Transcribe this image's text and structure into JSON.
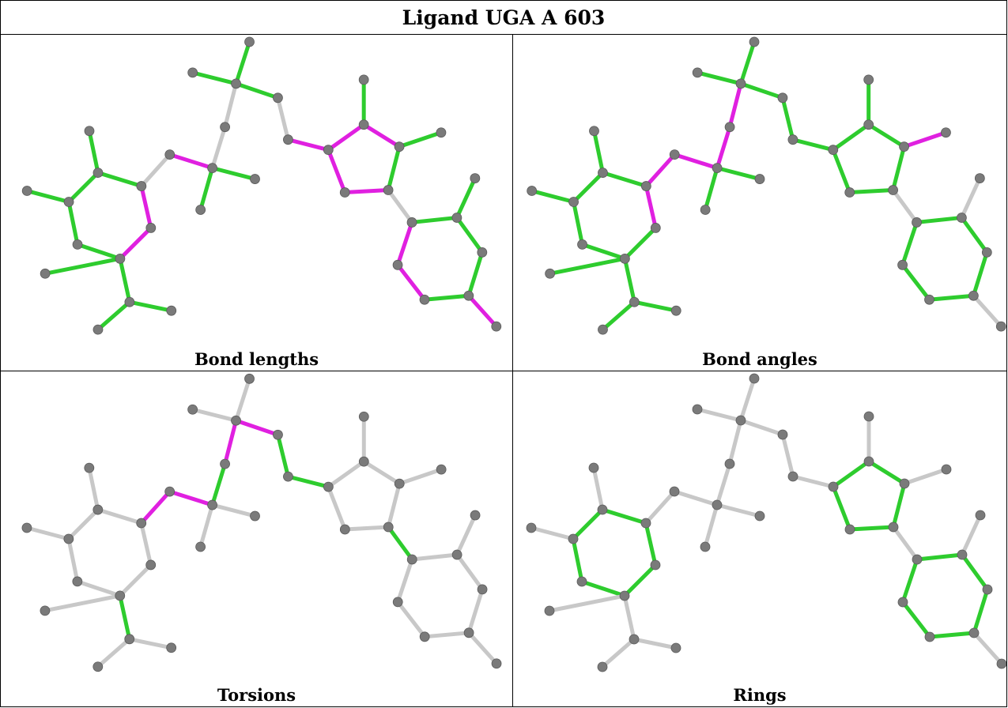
{
  "title": "Ligand UGA A 603",
  "panels": [
    {
      "caption": "Bond lengths"
    },
    {
      "caption": "Bond angles"
    },
    {
      "caption": "Torsions"
    },
    {
      "caption": "Rings"
    }
  ],
  "colors": {
    "green": "#2ecc2e",
    "magenta": "#e020e0",
    "grey": "#c8c8c8",
    "atom": "#7a7a7a"
  },
  "atoms": [
    "c1",
    "c2",
    "c3",
    "c4",
    "c5",
    "c6",
    "h1",
    "h2",
    "h3",
    "m1",
    "m2",
    "m3",
    "l1",
    "n1",
    "k1",
    "k2",
    "k3",
    "k4",
    "k5",
    "k6",
    "r1",
    "r2",
    "r3",
    "r4",
    "r5",
    "e1",
    "e2",
    "b1",
    "b2",
    "b3",
    "b4",
    "b5",
    "b6",
    "h7"
  ],
  "bonds": [
    [
      "c1",
      "c2"
    ],
    [
      "c2",
      "c3"
    ],
    [
      "c3",
      "c4"
    ],
    [
      "c4",
      "c5"
    ],
    [
      "c5",
      "c6"
    ],
    [
      "c6",
      "c1"
    ],
    [
      "c2",
      "h1"
    ],
    [
      "c4",
      "h2"
    ],
    [
      "c5",
      "h3"
    ],
    [
      "c3",
      "m1"
    ],
    [
      "m1",
      "m2"
    ],
    [
      "m1",
      "m3"
    ],
    [
      "c1",
      "l1"
    ],
    [
      "l1",
      "n1"
    ],
    [
      "n1",
      "k1"
    ],
    [
      "k1",
      "k3"
    ],
    [
      "k1",
      "k4"
    ],
    [
      "k1",
      "k2"
    ],
    [
      "k2",
      "k5"
    ],
    [
      "k5",
      "k6"
    ],
    [
      "k6",
      "k7"
    ],
    [
      "k6",
      "k8"
    ],
    [
      "k5",
      "k9"
    ],
    [
      "k9",
      "k10"
    ],
    [
      "k10",
      "r1"
    ],
    [
      "r1",
      "r2"
    ],
    [
      "r2",
      "r3"
    ],
    [
      "r3",
      "r4"
    ],
    [
      "r4",
      "r5"
    ],
    [
      "r5",
      "r1"
    ],
    [
      "r2",
      "e1"
    ],
    [
      "r3",
      "e2"
    ],
    [
      "r4",
      "b1"
    ],
    [
      "b1",
      "b2"
    ],
    [
      "b2",
      "b3"
    ],
    [
      "b3",
      "b4"
    ],
    [
      "b4",
      "b5"
    ],
    [
      "b5",
      "b6"
    ],
    [
      "b6",
      "b1"
    ],
    [
      "b2",
      "h6"
    ],
    [
      "b4",
      "h7"
    ]
  ],
  "bond_colors": {
    "bond_lengths": [
      "g",
      "g",
      "g",
      "g",
      "m",
      "m",
      "g",
      "g",
      "g",
      "g",
      "g",
      "g",
      "g",
      "m",
      "g",
      "g",
      "g",
      "w",
      "w",
      "g",
      "g",
      "g",
      "g",
      "m",
      "m",
      "m",
      "m",
      "m",
      "m",
      "m",
      "g",
      "g",
      "w",
      "m",
      "g",
      "g",
      "m",
      "g",
      "g",
      "g",
      "m"
    ],
    "bond_angles": [
      "g",
      "g",
      "g",
      "g",
      "g",
      "m",
      "g",
      "g",
      "g",
      "g",
      "g",
      "g",
      "g",
      "m",
      "m",
      "g",
      "g",
      "w",
      "w",
      "g",
      "g",
      "g",
      "g",
      "g",
      "g",
      "g",
      "g",
      "g",
      "m",
      "m",
      "g",
      "g",
      "w",
      "g",
      "g",
      "g",
      "g",
      "g",
      "g",
      "g",
      "g"
    ],
    "torsions": [
      "w",
      "w",
      "w",
      "w",
      "w",
      "w",
      "w",
      "w",
      "w",
      "g",
      "w",
      "w",
      "m",
      "m",
      "m",
      "w",
      "w",
      "g",
      "w",
      "w",
      "w",
      "m",
      "m",
      "g",
      "g",
      "w",
      "w",
      "w",
      "w",
      "w",
      "w",
      "w",
      "g",
      "w",
      "w",
      "w",
      "w",
      "w",
      "w",
      "w",
      "w"
    ],
    "rings": [
      "g",
      "g",
      "g",
      "g",
      "g",
      "g",
      "w",
      "w",
      "w",
      "w",
      "w",
      "w",
      "w",
      "w",
      "w",
      "w",
      "w",
      "w",
      "w",
      "w",
      "w",
      "w",
      "w",
      "w",
      "w",
      "g",
      "g",
      "g",
      "g",
      "g",
      "w",
      "w",
      "w",
      "g",
      "g",
      "g",
      "g",
      "g",
      "g",
      "w",
      "w"
    ]
  }
}
